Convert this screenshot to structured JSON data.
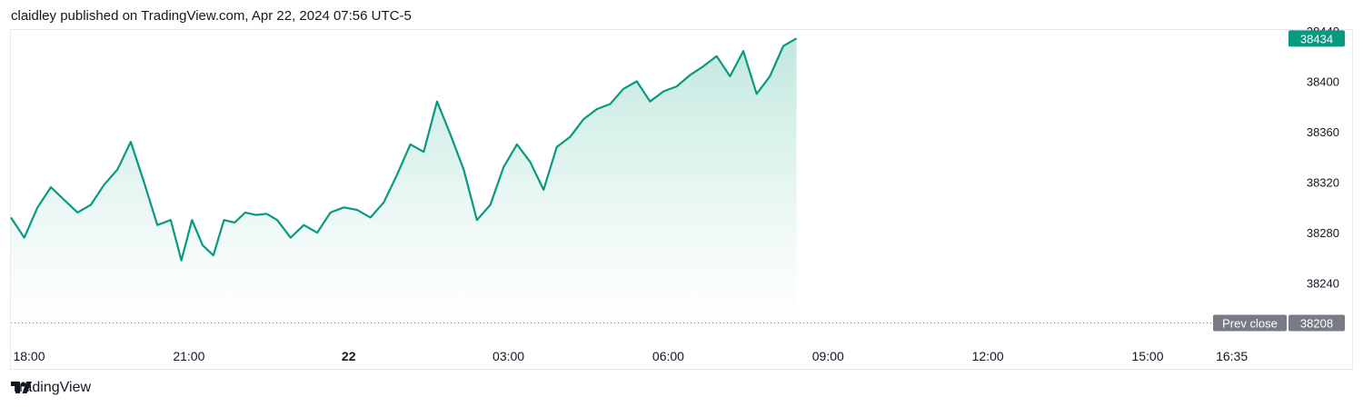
{
  "header": {
    "publish_line": "claidley published on TradingView.com, Apr 22, 2024 07:56 UTC-5"
  },
  "footer": {
    "brand": "TradingView"
  },
  "colors": {
    "line": "#089981",
    "fill_top": "#b9e5da",
    "fill_bottom": "#ffffff",
    "axis_text": "#131722",
    "last_badge": "#089981",
    "prev_badge": "#787b86"
  },
  "chart_data": {
    "type": "area",
    "title": "",
    "xlabel": "",
    "ylabel": "",
    "x_ticks": [
      "18:00",
      "21:00",
      "22",
      "03:00",
      "06:00",
      "09:00",
      "12:00",
      "15:00",
      "16:35"
    ],
    "x_tick_hours": [
      0,
      3,
      6,
      9,
      12,
      15,
      18,
      21,
      22.58
    ],
    "x_tick_bold": [
      false,
      false,
      true,
      false,
      false,
      false,
      false,
      false,
      false
    ],
    "y_ticks": [
      38240,
      38280,
      38320,
      38360,
      38400,
      38440
    ],
    "ylim": [
      38208,
      38440
    ],
    "xlim_hours": [
      0,
      23.9
    ],
    "series": [
      {
        "x_hours": [
          0,
          0.25,
          0.5,
          0.75,
          1,
          1.25,
          1.5,
          1.75,
          2,
          2.25,
          2.5,
          2.75,
          3,
          3.2,
          3.4,
          3.6,
          3.8,
          4,
          4.2,
          4.4,
          4.6,
          4.8,
          5,
          5.25,
          5.5,
          5.75,
          6,
          6.25,
          6.5,
          6.75,
          7,
          7.25,
          7.5,
          7.75,
          8,
          8.25,
          8.5,
          8.75,
          9,
          9.25,
          9.5,
          9.75,
          10,
          10.25,
          10.5,
          10.75,
          11,
          11.25,
          11.5,
          11.75,
          12,
          12.25,
          12.5,
          12.75,
          13,
          13.25,
          13.5,
          13.75,
          14,
          14.25,
          14.5,
          14.75
        ],
        "values": [
          38292,
          38276,
          38300,
          38316,
          38306,
          38296,
          38302,
          38318,
          38330,
          38352,
          38320,
          38286,
          38290,
          38258,
          38290,
          38270,
          38262,
          38290,
          38288,
          38296,
          38294,
          38295,
          38290,
          38276,
          38286,
          38280,
          38296,
          38300,
          38298,
          38292,
          38304,
          38326,
          38350,
          38344,
          38384,
          38358,
          38330,
          38290,
          38302,
          38332,
          38350,
          38336,
          38314,
          38348,
          38356,
          38370,
          38378,
          38382,
          38394,
          38400,
          38384,
          38392,
          38396,
          38405,
          38412,
          38420,
          38404,
          38424,
          38390,
          38404,
          38428,
          38434
        ]
      }
    ],
    "last_value": 38434,
    "last_label": "38434",
    "prev_close": 38208,
    "prev_close_label": "Prev close",
    "prev_close_value_label": "38208",
    "grid": false,
    "legend": "none"
  }
}
